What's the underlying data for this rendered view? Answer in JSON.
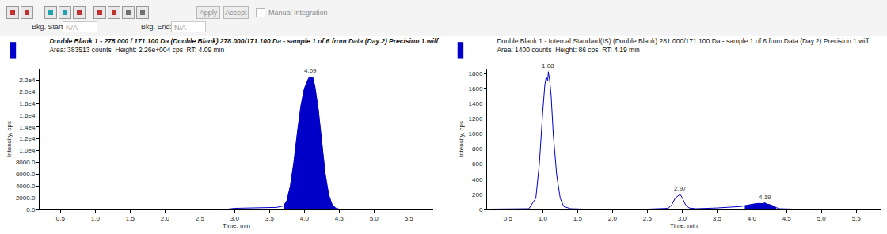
{
  "toolbar": {
    "apply": "Apply",
    "accept": "Accept",
    "manual_integration": "Manual Integration",
    "bkg_start_label": "Bkg. Start:",
    "bkg_start_value": "N/A",
    "bkg_end_label": "Bkg. End:",
    "bkg_end_value": "N/A"
  },
  "chart_data": [
    {
      "type": "line",
      "title": "Double Blank 1 - 278.000 / 171.100 Da (Double Blank) 278.000/171.100 Da - sample 1 of 6 from Data (Day.2) Precision 1.wiff",
      "subtitle": "Area: 383513 counts  Height: 2.26e+004 cps  RT: 4.09 min",
      "x_label": "Time, min",
      "y_label": "Intensity, cps",
      "x": [
        0.2,
        0.5,
        1.0,
        1.5,
        2.0,
        2.5,
        2.9,
        3.0,
        3.2,
        3.4,
        3.6,
        3.7,
        3.75,
        3.8,
        3.85,
        3.9,
        3.95,
        4.0,
        4.05,
        4.08,
        4.1,
        4.12,
        4.15,
        4.2,
        4.25,
        4.3,
        4.35,
        4.4,
        4.45,
        4.5,
        4.7,
        5.0,
        5.5,
        5.85
      ],
      "series": [
        {
          "type": "line",
          "color": "#0000c8",
          "values": [
            20,
            20,
            20,
            20,
            20,
            30,
            60,
            200,
            250,
            280,
            350,
            600,
            1500,
            4000,
            8000,
            13000,
            17500,
            20500,
            22000,
            22600,
            22300,
            22500,
            21000,
            17000,
            11000,
            6000,
            2500,
            800,
            250,
            60,
            20,
            20,
            20,
            20
          ]
        },
        {
          "type": "area",
          "color": "#0000c8",
          "values": [
            null,
            null,
            null,
            null,
            null,
            null,
            null,
            null,
            null,
            null,
            null,
            600,
            1500,
            4000,
            8000,
            13000,
            17500,
            20500,
            22000,
            22600,
            22300,
            22500,
            21000,
            17000,
            11000,
            6000,
            2500,
            800,
            250,
            null,
            null,
            null,
            null,
            null
          ]
        }
      ],
      "annotations": [
        {
          "x": 4.09,
          "y": 22600,
          "text": "4.09"
        }
      ],
      "xlim": [
        0.2,
        5.85
      ],
      "xticks": [
        0.5,
        {
          "value": 1,
          "label": "1.0"
        },
        1.5,
        {
          "value": 2,
          "label": "2.0"
        },
        2.5,
        {
          "value": 3,
          "label": "3.0"
        },
        3.5,
        {
          "value": 4,
          "label": "4.0"
        },
        4.5,
        {
          "value": 5,
          "label": "5.0"
        },
        5.5
      ],
      "ylim": [
        0,
        23900
      ],
      "yticks": [
        {
          "value": 0,
          "label": "0.0"
        },
        {
          "value": 2000,
          "label": "2000.0"
        },
        {
          "value": 4000,
          "label": "4000.0"
        },
        {
          "value": 6000,
          "label": "6000.0"
        },
        {
          "value": 8000,
          "label": "8000.0"
        },
        {
          "value": 10000,
          "label": "1.0e4"
        },
        {
          "value": 12000,
          "label": "1.2e4"
        },
        {
          "value": 14000,
          "label": "1.4e4"
        },
        {
          "value": 16000,
          "label": "1.6e4"
        },
        {
          "value": 18000,
          "label": "1.8e4"
        },
        {
          "value": 20000,
          "label": "2.0e4"
        },
        {
          "value": 22000,
          "label": "2.2e4"
        }
      ],
      "grid": false
    },
    {
      "type": "line",
      "title": "Double Blank 1 - Internal Standard(IS) (Double Blank) 281.000/171.100 Da - sample 1 of 6 from Data (Day.2) Precision 1.wiff",
      "subtitle": "Area: 1400 counts  Height: 86 cps  RT: 4.19 min",
      "x_label": "Time, min",
      "y_label": "Intensity, cps",
      "x": [
        0.2,
        0.5,
        0.8,
        0.9,
        0.95,
        1.0,
        1.03,
        1.05,
        1.07,
        1.08,
        1.1,
        1.12,
        1.15,
        1.2,
        1.25,
        1.3,
        1.4,
        1.6,
        2.0,
        2.5,
        2.8,
        2.85,
        2.9,
        2.95,
        2.97,
        3.0,
        3.05,
        3.1,
        3.2,
        3.5,
        3.7,
        3.85,
        3.9,
        3.95,
        4.0,
        4.05,
        4.1,
        4.15,
        4.19,
        4.22,
        4.25,
        4.3,
        4.35,
        4.4,
        4.6,
        5.0,
        5.5,
        5.85
      ],
      "series": [
        {
          "type": "line",
          "color": "#0000c8",
          "values": [
            5,
            5,
            10,
            150,
            600,
            1300,
            1650,
            1750,
            1700,
            1820,
            1700,
            1500,
            1000,
            450,
            150,
            40,
            10,
            5,
            5,
            5,
            15,
            60,
            150,
            190,
            200,
            160,
            60,
            20,
            10,
            20,
            30,
            40,
            50,
            60,
            70,
            75,
            80,
            78,
            86,
            70,
            65,
            50,
            25,
            10,
            5,
            5,
            5,
            5
          ]
        },
        {
          "type": "area",
          "color": "#0000c8",
          "values": [
            null,
            null,
            null,
            null,
            null,
            null,
            null,
            null,
            null,
            null,
            null,
            null,
            null,
            null,
            null,
            null,
            null,
            null,
            null,
            null,
            null,
            null,
            null,
            null,
            null,
            null,
            null,
            null,
            null,
            null,
            null,
            null,
            50,
            60,
            70,
            75,
            80,
            78,
            86,
            70,
            65,
            50,
            25,
            null,
            null,
            null,
            null,
            null
          ]
        }
      ],
      "annotations": [
        {
          "x": 1.08,
          "y": 1820,
          "text": "1.08"
        },
        {
          "x": 2.97,
          "y": 200,
          "text": "2.97"
        },
        {
          "x": 4.19,
          "y": 86,
          "text": "4.19"
        }
      ],
      "xlim": [
        0.2,
        5.85
      ],
      "xticks": [
        0.5,
        {
          "value": 1,
          "label": "1.0"
        },
        1.5,
        {
          "value": 2,
          "label": "2.0"
        },
        2.5,
        {
          "value": 3,
          "label": "3.0"
        },
        3.5,
        {
          "value": 4,
          "label": "4.0"
        },
        4.5,
        {
          "value": 5,
          "label": "5.0"
        },
        5.5
      ],
      "ylim": [
        0,
        1860
      ],
      "yticks": [
        0,
        200,
        400,
        600,
        800,
        1000,
        1200,
        1400,
        1600,
        1800
      ],
      "grid": false
    }
  ]
}
